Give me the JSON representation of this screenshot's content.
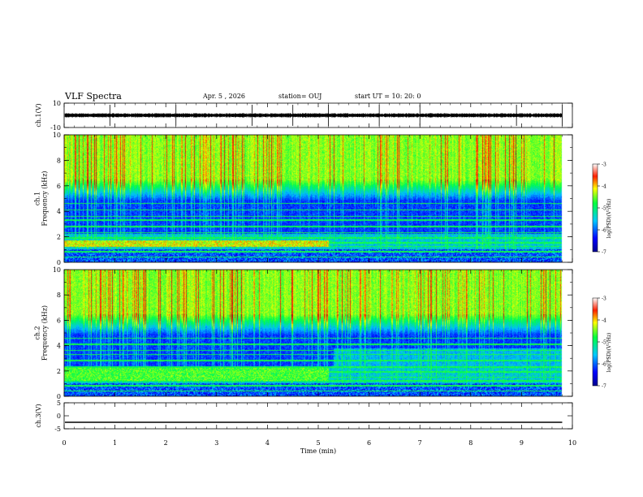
{
  "header": {
    "title": "VLF Spectra",
    "date": "Apr. 5 , 2026",
    "station": "station= OUJ",
    "start_ut": "start UT = 10: 20: 0"
  },
  "chart_data": [
    {
      "type": "line",
      "panel": "ch1-waveform",
      "ylabel": "ch.1(V)",
      "ylim": [
        -10,
        10
      ],
      "yticks": [
        "10",
        "-10"
      ],
      "xlim": [
        0,
        10
      ],
      "signal": {
        "center": 0,
        "amplitude": 1.5,
        "end_min": 9.8
      }
    },
    {
      "type": "heatmap",
      "panel": "ch1-spectrogram",
      "ylabel": "ch.1\nFrequency (kHz)",
      "ylim": [
        0,
        10
      ],
      "yticks": [
        "0",
        "2",
        "4",
        "6",
        "8",
        "10"
      ],
      "xlim": [
        0,
        10
      ],
      "data_end_min": 9.8,
      "colorbar": {
        "label": "log(PSD)(V²/Hz)",
        "ticks": [
          "-3",
          "-4",
          "-5",
          "-6",
          "-7"
        ],
        "range": [
          -7,
          -3
        ]
      }
    },
    {
      "type": "heatmap",
      "panel": "ch2-spectrogram",
      "ylabel": "ch.2\nFrequency (kHz)",
      "ylim": [
        0,
        10
      ],
      "yticks": [
        "0",
        "2",
        "4",
        "6",
        "8",
        "10"
      ],
      "xlim": [
        0,
        10
      ],
      "data_end_min": 9.8,
      "colorbar": {
        "label": "log(PSD)(V²/Hz)",
        "ticks": [
          "-3",
          "-4",
          "-5",
          "-6",
          "-7"
        ],
        "range": [
          -7,
          -3
        ]
      }
    },
    {
      "type": "line",
      "panel": "ch3-waveform",
      "ylabel": "ch.3(V)",
      "ylim": [
        -5,
        5
      ],
      "yticks": [
        "5",
        "0",
        "-5"
      ],
      "xlim": [
        0,
        10
      ],
      "xlabel": "Time (min)",
      "xticks": [
        "0",
        "1",
        "2",
        "3",
        "4",
        "5",
        "6",
        "7",
        "8",
        "9",
        "10"
      ],
      "signal": {
        "center": -2.5,
        "amplitude": 0,
        "end_min": 9.8
      }
    }
  ]
}
